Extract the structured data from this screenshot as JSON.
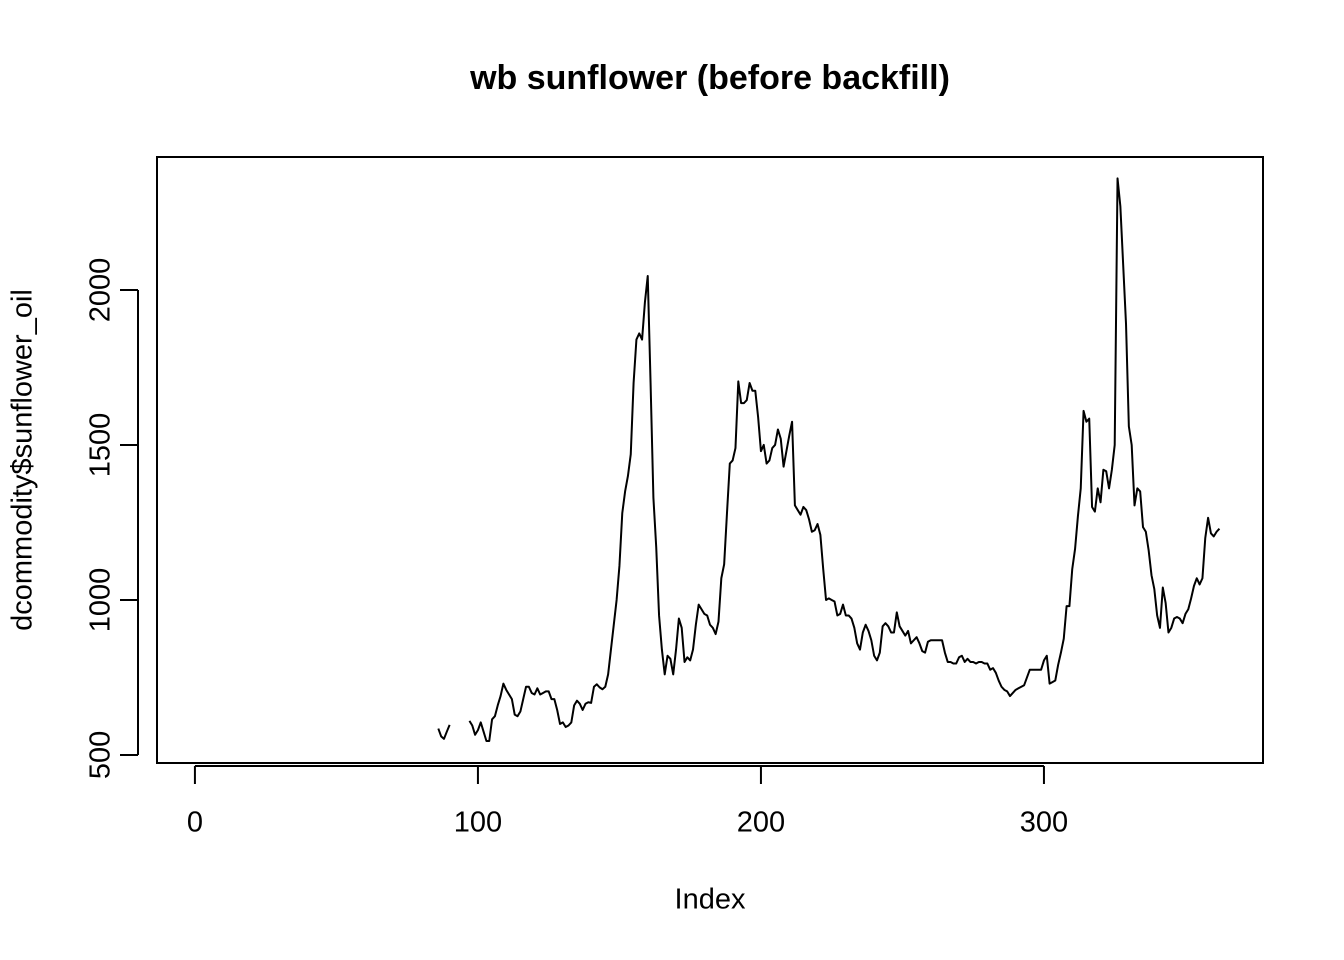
{
  "chart_data": {
    "type": "line",
    "title": "wb sunflower (before backfill)",
    "xlabel": "Index",
    "ylabel": "dcommodity$sunflower_oil",
    "xlim": [
      -13.4,
      377.4
    ],
    "ylim": [
      474,
      2429
    ],
    "xticks": [
      0,
      100,
      200,
      300
    ],
    "yticks": [
      500,
      1000,
      1500,
      2000
    ],
    "color": "#000000",
    "x": [
      86,
      87,
      88,
      89,
      90,
      91,
      92,
      93,
      94,
      95,
      96,
      97,
      98,
      99,
      100,
      101,
      102,
      103,
      104,
      105,
      106,
      107,
      108,
      109,
      110,
      111,
      112,
      113,
      114,
      115,
      116,
      117,
      118,
      119,
      120,
      121,
      122,
      123,
      124,
      125,
      126,
      127,
      128,
      129,
      130,
      131,
      132,
      133,
      134,
      135,
      136,
      137,
      138,
      139,
      140,
      141,
      142,
      143,
      144,
      145,
      146,
      147,
      148,
      149,
      150,
      151,
      152,
      153,
      154,
      155,
      156,
      157,
      158,
      159,
      160,
      161,
      162,
      163,
      164,
      165,
      166,
      167,
      168,
      169,
      170,
      171,
      172,
      173,
      174,
      175,
      176,
      177,
      178,
      179,
      180,
      181,
      182,
      183,
      184,
      185,
      186,
      187,
      188,
      189,
      190,
      191,
      192,
      193,
      194,
      195,
      196,
      197,
      198,
      199,
      200,
      201,
      202,
      203,
      204,
      205,
      206,
      207,
      208,
      209,
      210,
      211,
      212,
      213,
      214,
      215,
      216,
      217,
      218,
      219,
      220,
      221,
      222,
      223,
      224,
      225,
      226,
      227,
      228,
      229,
      230,
      231,
      232,
      233,
      234,
      235,
      236,
      237,
      238,
      239,
      240,
      241,
      242,
      243,
      244,
      245,
      246,
      247,
      248,
      249,
      250,
      251,
      252,
      253,
      254,
      255,
      256,
      257,
      258,
      259,
      260,
      261,
      262,
      263,
      264,
      265,
      266,
      267,
      268,
      269,
      270,
      271,
      272,
      273,
      274,
      275,
      276,
      277,
      278,
      279,
      280,
      281,
      282,
      283,
      284,
      285,
      286,
      287,
      288,
      289,
      290,
      291,
      292,
      293,
      294,
      295,
      296,
      297,
      298,
      299,
      300,
      301,
      302,
      303,
      304,
      305,
      306,
      307,
      308,
      309,
      310,
      311,
      312,
      313,
      314,
      315,
      316,
      317,
      318,
      319,
      320,
      321,
      322,
      323,
      324,
      325,
      326,
      327,
      328,
      329,
      330,
      331,
      332,
      333,
      334,
      335,
      336,
      337,
      338,
      339,
      340,
      341,
      342,
      343,
      344,
      345,
      346,
      347,
      348,
      349,
      350,
      351,
      352,
      353,
      354,
      355,
      356,
      357,
      358,
      359,
      360,
      361,
      362
    ],
    "values": [
      585,
      560,
      552,
      575,
      597,
      null,
      null,
      null,
      null,
      null,
      null,
      610,
      595,
      565,
      580,
      605,
      575,
      545,
      545,
      615,
      625,
      660,
      690,
      730,
      710,
      695,
      680,
      630,
      625,
      640,
      680,
      720,
      720,
      700,
      695,
      715,
      695,
      700,
      705,
      705,
      680,
      680,
      645,
      600,
      605,
      590,
      595,
      605,
      660,
      675,
      665,
      645,
      665,
      670,
      668,
      720,
      728,
      718,
      712,
      720,
      760,
      840,
      920,
      1000,
      1110,
      1280,
      1350,
      1400,
      1470,
      1700,
      1840,
      1860,
      1840,
      1960,
      2045,
      1700,
      1330,
      1170,
      950,
      840,
      760,
      820,
      810,
      760,
      840,
      940,
      910,
      800,
      815,
      805,
      840,
      920,
      985,
      970,
      955,
      950,
      920,
      910,
      890,
      930,
      1070,
      1115,
      1280,
      1440,
      1450,
      1490,
      1705,
      1635,
      1635,
      1645,
      1700,
      1675,
      1675,
      1590,
      1480,
      1500,
      1440,
      1450,
      1490,
      1500,
      1550,
      1520,
      1430,
      1480,
      1530,
      1575,
      1305,
      1290,
      1275,
      1300,
      1290,
      1260,
      1220,
      1225,
      1245,
      1210,
      1100,
      1000,
      1005,
      1000,
      995,
      950,
      955,
      985,
      950,
      950,
      940,
      910,
      860,
      840,
      895,
      920,
      900,
      870,
      820,
      805,
      830,
      915,
      925,
      915,
      895,
      895,
      960,
      915,
      900,
      885,
      900,
      860,
      870,
      880,
      860,
      835,
      830,
      865,
      870,
      870,
      870,
      870,
      870,
      830,
      800,
      800,
      795,
      795,
      815,
      820,
      800,
      810,
      800,
      800,
      795,
      800,
      800,
      795,
      795,
      775,
      780,
      765,
      740,
      720,
      710,
      705,
      690,
      700,
      710,
      715,
      720,
      725,
      750,
      775,
      775,
      775,
      775,
      775,
      805,
      820,
      730,
      735,
      740,
      790,
      830,
      875,
      980,
      980,
      1100,
      1165,
      1270,
      1360,
      1610,
      1575,
      1585,
      1300,
      1285,
      1360,
      1315,
      1420,
      1415,
      1360,
      1420,
      1500,
      2360,
      2270,
      2080,
      1890,
      1560,
      1500,
      1305,
      1360,
      1350,
      1235,
      1220,
      1160,
      1080,
      1035,
      950,
      910,
      1040,
      990,
      895,
      910,
      940,
      945,
      940,
      925,
      955,
      970,
      1005,
      1045,
      1070,
      1050,
      1070,
      1200,
      1265,
      1215,
      1205,
      1220,
      1230
    ]
  }
}
